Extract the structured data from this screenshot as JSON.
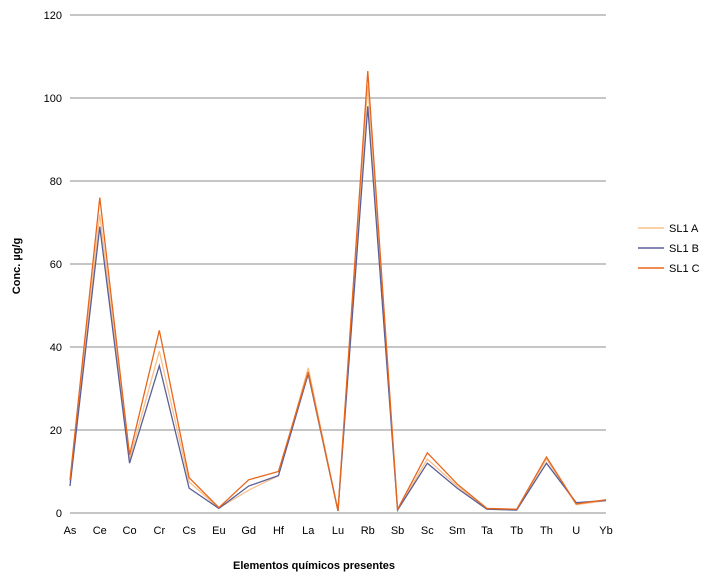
{
  "chart_data": {
    "type": "line",
    "title": "",
    "xlabel": "Elementos químicos presentes",
    "ylabel": "Conc. µg/g",
    "ylim": [
      0,
      120
    ],
    "yticks": [
      0,
      20,
      40,
      60,
      80,
      100,
      120
    ],
    "grid": true,
    "legend_position": "right",
    "categories": [
      "As",
      "Ce",
      "Co",
      "Cr",
      "Cs",
      "Eu",
      "Gd",
      "Hf",
      "La",
      "Lu",
      "Rb",
      "Sb",
      "Sc",
      "Sm",
      "Ta",
      "Tb",
      "Th",
      "U",
      "Yb"
    ],
    "series": [
      {
        "name": "SL1 A",
        "color": "#f8c08c",
        "values": [
          7.5,
          72,
          13,
          39,
          7.5,
          1.2,
          5.5,
          9,
          35,
          0.5,
          103,
          0.8,
          13,
          6.5,
          1.0,
          0.8,
          13,
          2.0,
          3.0
        ]
      },
      {
        "name": "SL1 B",
        "color": "#5a5f98",
        "values": [
          6.5,
          69,
          12,
          35.5,
          6,
          1.1,
          6.5,
          9,
          33.5,
          0.5,
          98,
          0.7,
          12,
          6,
          0.9,
          0.7,
          12,
          2.5,
          3.0
        ]
      },
      {
        "name": "SL1 C",
        "color": "#e8661c",
        "values": [
          8,
          76,
          14,
          44,
          8.5,
          1.3,
          8,
          10,
          34,
          0.5,
          106.5,
          0.9,
          14.5,
          7,
          1.1,
          0.9,
          13.5,
          2.2,
          3.2
        ]
      }
    ]
  }
}
